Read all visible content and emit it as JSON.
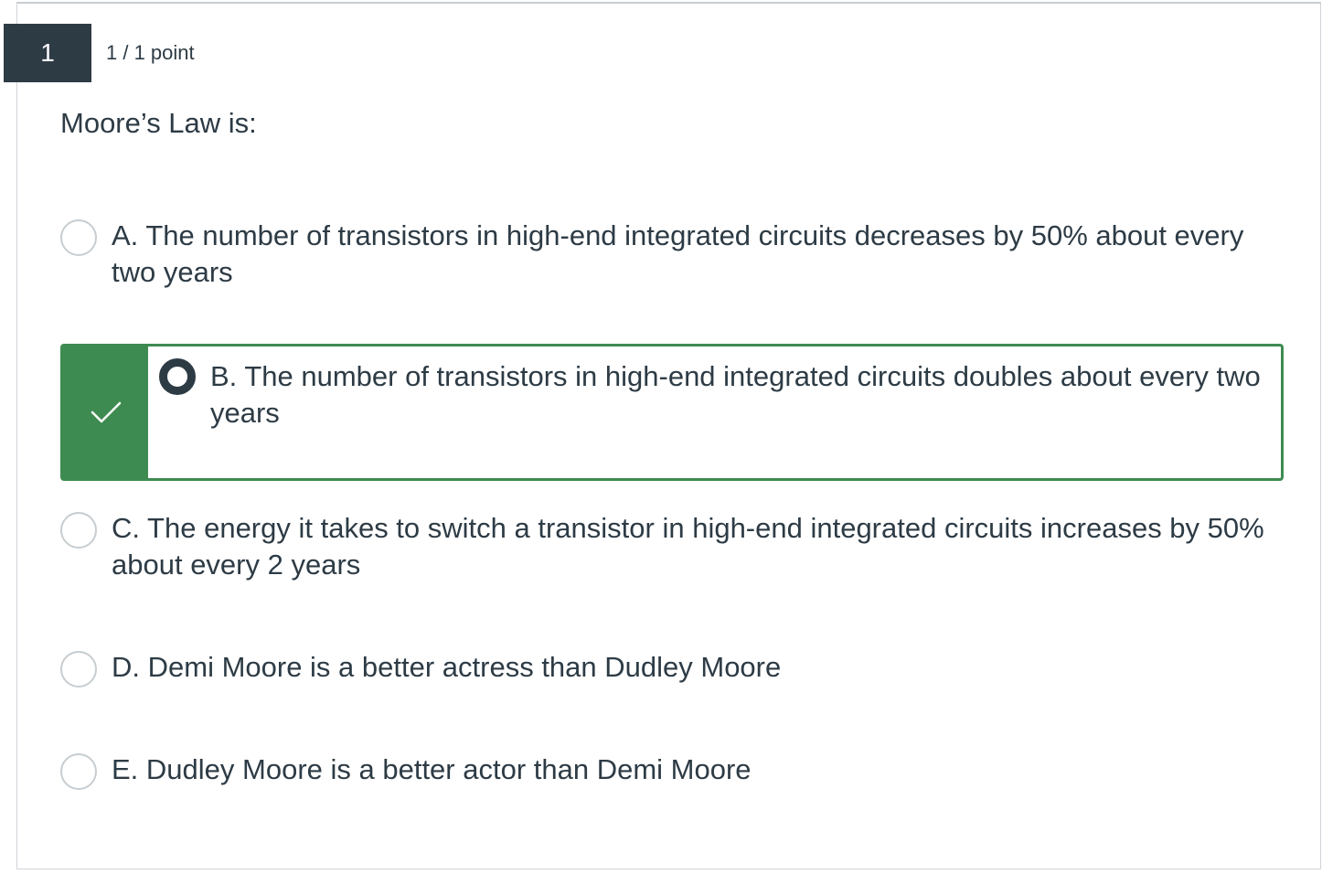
{
  "question": {
    "number": "1",
    "points": "1 / 1 point",
    "prompt": "Moore’s Law is:"
  },
  "options": [
    {
      "label": "A. The number of transistors in high-end integrated circuits decreases by 50% about every two years",
      "selected": false,
      "correct": false
    },
    {
      "label": "B. The number of transistors in high-end integrated circuits doubles about every two years",
      "selected": true,
      "correct": true
    },
    {
      "label": "C. The energy it takes to switch a transistor in high-end integrated circuits increases by 50% about every 2 years",
      "selected": false,
      "correct": false
    },
    {
      "label": "D. Demi Moore is a better actress than Dudley Moore",
      "selected": false,
      "correct": false
    },
    {
      "label": "E. Dudley Moore is a better actor than Demi Moore",
      "selected": false,
      "correct": false
    }
  ],
  "icons": {
    "correct_indicator": "checkmark-icon"
  },
  "colors": {
    "question_badge": "#2d3b45",
    "correct_green": "#3e8b51",
    "text": "#2d3b45",
    "radio_border": "#c7cdd1"
  }
}
